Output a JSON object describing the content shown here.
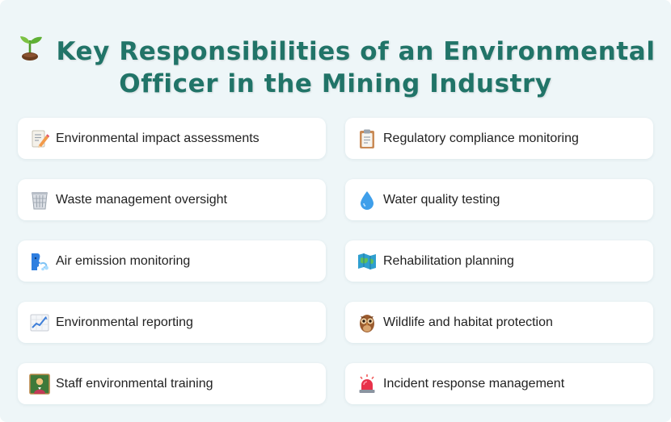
{
  "title": {
    "line1": "Key Responsibilities of an Environmental",
    "line2": "Officer in the Mining Industry",
    "icon": "seedling-icon"
  },
  "colors": {
    "title": "#217468",
    "background": "#eef6f8",
    "card": "#ffffff"
  },
  "responsibilities": [
    {
      "label": "Environmental impact assessments",
      "icon": "memo-pencil-icon"
    },
    {
      "label": "Regulatory compliance monitoring",
      "icon": "clipboard-icon"
    },
    {
      "label": "Waste management oversight",
      "icon": "wastebasket-icon"
    },
    {
      "label": "Water quality testing",
      "icon": "water-droplet-icon"
    },
    {
      "label": "Air emission monitoring",
      "icon": "wind-face-icon"
    },
    {
      "label": "Rehabilitation planning",
      "icon": "map-icon"
    },
    {
      "label": "Environmental reporting",
      "icon": "chart-increasing-icon"
    },
    {
      "label": "Wildlife and habitat protection",
      "icon": "owl-icon"
    },
    {
      "label": "Staff environmental training",
      "icon": "teacher-icon"
    },
    {
      "label": "Incident response management",
      "icon": "police-light-icon"
    }
  ]
}
